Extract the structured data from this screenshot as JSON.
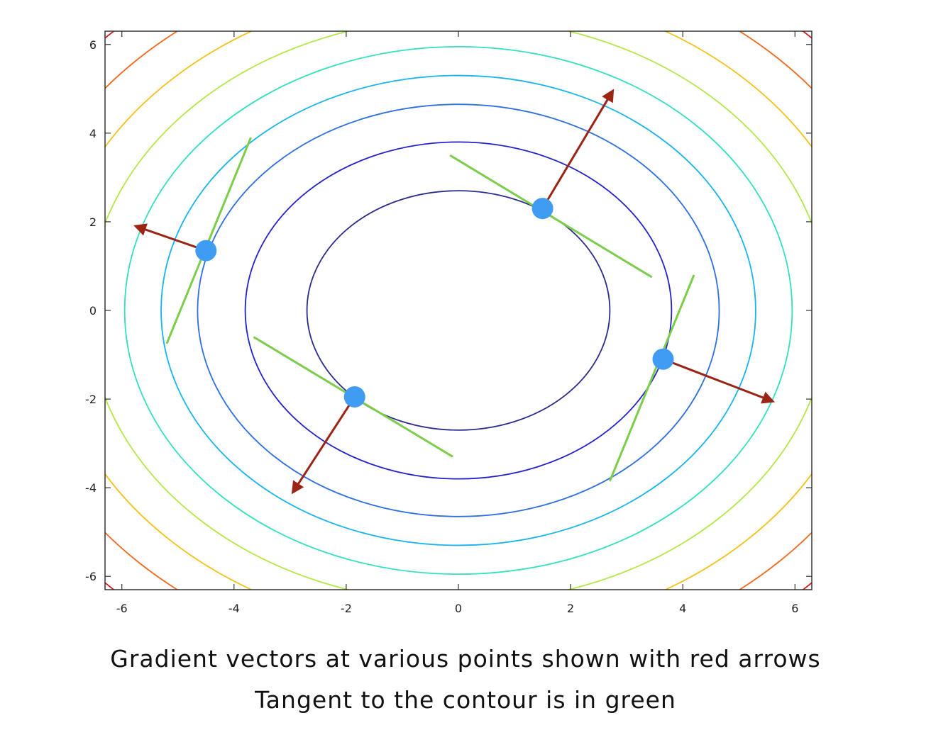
{
  "chart_data": {
    "type": "contour",
    "title": "",
    "xlabel": "",
    "ylabel": "",
    "xlim": [
      -6.3,
      6.3
    ],
    "ylim": [
      -6.3,
      6.3
    ],
    "xticks": [
      -6,
      -4,
      -2,
      0,
      2,
      4,
      6
    ],
    "yticks": [
      6,
      4,
      2,
      0,
      -2,
      -4,
      -6
    ],
    "grid": false,
    "contours": {
      "aspect_y_over_x": 1.0,
      "semi_axis_x": [
        2.7,
        3.8,
        4.65,
        5.3,
        5.95,
        6.6,
        7.3,
        8.05,
        8.8
      ],
      "semi_axis_y": [
        2.7,
        3.8,
        4.65,
        5.3,
        5.95,
        6.6,
        7.3,
        8.05,
        8.8
      ],
      "colors": [
        "#2b2b8a",
        "#2222cc",
        "#2f6fe0",
        "#18b4ee",
        "#33e0c0",
        "#b4e84a",
        "#f3c21a",
        "#f06a1e",
        "#d11818"
      ]
    },
    "points": [
      {
        "x": 1.5,
        "y": 2.3,
        "grad_dx": 1.25,
        "grad_dy": 2.65,
        "tan_start": [
          -0.15,
          3.5
        ],
        "tan_end": [
          3.45,
          0.75
        ]
      },
      {
        "x": -4.5,
        "y": 1.35,
        "grad_dx": -1.25,
        "grad_dy": 0.55,
        "tan_start": [
          -5.2,
          -0.75
        ],
        "tan_end": [
          -3.7,
          3.9
        ]
      },
      {
        "x": -1.85,
        "y": -1.95,
        "grad_dx": -1.1,
        "grad_dy": -2.15,
        "tan_start": [
          -3.65,
          -0.6
        ],
        "tan_end": [
          -0.1,
          -3.3
        ]
      },
      {
        "x": 3.65,
        "y": -1.1,
        "grad_dx": 1.95,
        "grad_dy": -0.95,
        "tan_start": [
          2.7,
          -3.85
        ],
        "tan_end": [
          4.2,
          0.8
        ]
      }
    ],
    "point_color": "#3f9cf2",
    "arrow_color": "#9b2414",
    "tangent_color": "#7ccd4a"
  },
  "captions": {
    "line1": "Gradient vectors at various points shown with red arrows",
    "line2": "Tangent to the contour is in green"
  }
}
